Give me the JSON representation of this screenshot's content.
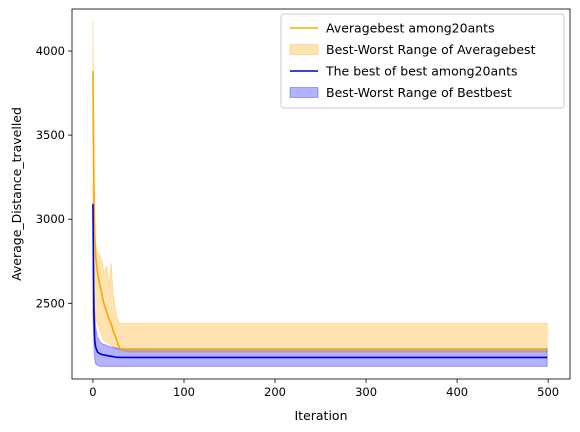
{
  "chart_data": {
    "type": "line",
    "title": "",
    "xlabel": "Iteration",
    "ylabel": "Average_Distance_travelled",
    "xlim": [
      -23,
      524
    ],
    "ylim": [
      2050,
      4250
    ],
    "xticks": [
      0,
      100,
      200,
      300,
      400,
      500
    ],
    "yticks": [
      2500,
      3000,
      3500,
      4000
    ],
    "grid": false,
    "legend_position": "top-right",
    "series": [
      {
        "name": "Averagebest among20ants",
        "kind": "line",
        "color": "#ffa500",
        "x": [
          0,
          1,
          2,
          3,
          5,
          8,
          10,
          12,
          15,
          18,
          20,
          22,
          25,
          28,
          30,
          40,
          60,
          100,
          200,
          300,
          400,
          499
        ],
        "y": [
          3880,
          3200,
          2900,
          2780,
          2680,
          2600,
          2550,
          2500,
          2450,
          2400,
          2380,
          2340,
          2300,
          2250,
          2230,
          2225,
          2225,
          2225,
          2225,
          2225,
          2225,
          2225
        ]
      },
      {
        "name": "Best-Worst Range of Averagebest",
        "kind": "band",
        "color": "#ffa500",
        "x": [
          0,
          1,
          2,
          3,
          5,
          8,
          10,
          12,
          15,
          18,
          20,
          22,
          25,
          28,
          30,
          40,
          60,
          100,
          200,
          300,
          400,
          499
        ],
        "lower": [
          3000,
          2650,
          2450,
          2400,
          2380,
          2330,
          2300,
          2280,
          2270,
          2260,
          2250,
          2240,
          2230,
          2225,
          2220,
          2210,
          2210,
          2210,
          2210,
          2210,
          2210,
          2210
        ],
        "upper": [
          4180,
          3500,
          2950,
          2850,
          2800,
          2780,
          2750,
          2680,
          2720,
          2600,
          2740,
          2560,
          2450,
          2390,
          2380,
          2380,
          2380,
          2380,
          2380,
          2380,
          2380,
          2380
        ]
      },
      {
        "name": "The best of best among20ants",
        "kind": "line",
        "color": "#0000cc",
        "x": [
          0,
          1,
          2,
          3,
          5,
          8,
          10,
          15,
          20,
          25,
          30,
          40,
          60,
          100,
          200,
          300,
          400,
          499
        ],
        "y": [
          3090,
          2450,
          2280,
          2240,
          2210,
          2200,
          2195,
          2190,
          2185,
          2180,
          2178,
          2178,
          2178,
          2178,
          2178,
          2178,
          2178,
          2178
        ]
      },
      {
        "name": "Best-Worst Range of Bestbest",
        "kind": "band",
        "color": "#0000ff",
        "x": [
          0,
          1,
          2,
          3,
          5,
          8,
          10,
          15,
          20,
          25,
          30,
          40,
          60,
          100,
          200,
          300,
          400,
          499
        ],
        "lower": [
          2450,
          2250,
          2170,
          2140,
          2130,
          2125,
          2125,
          2125,
          2125,
          2125,
          2125,
          2125,
          2125,
          2125,
          2125,
          2125,
          2125,
          2125
        ],
        "upper": [
          3100,
          2600,
          2430,
          2360,
          2300,
          2270,
          2260,
          2250,
          2240,
          2235,
          2230,
          2230,
          2230,
          2230,
          2230,
          2230,
          2230,
          2230
        ]
      }
    ]
  }
}
